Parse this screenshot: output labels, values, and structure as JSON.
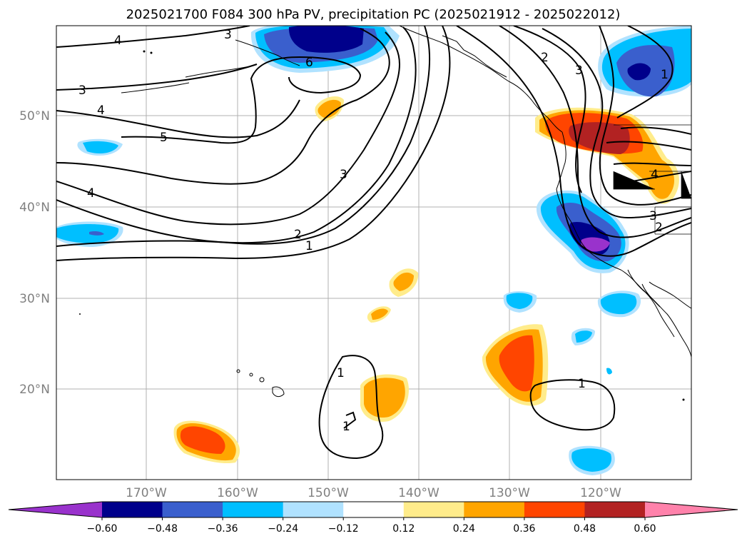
{
  "title": "2025021700 F084 300 hPa PV, precipitation PC (2025021912 - 2025022012)",
  "axes": {
    "lat_labels": [
      "50°N",
      "40°N",
      "30°N",
      "20°N"
    ],
    "lon_labels": [
      "170°W",
      "160°W",
      "150°W",
      "140°W",
      "130°W",
      "120°W"
    ]
  },
  "colorbar": {
    "levels": [
      "−0.60",
      "−0.48",
      "−0.36",
      "−0.24",
      "−0.12",
      "0.12",
      "0.24",
      "0.36",
      "0.48",
      "0.60"
    ],
    "colors": [
      "#9932cc",
      "#00008b",
      "#3a5fcd",
      "#00bfff",
      "#b0e2ff",
      "#ffffff",
      "#ffec8b",
      "#ffa500",
      "#ff4500",
      "#b22222",
      "#ff82ab"
    ]
  },
  "contour_labels": [
    {
      "text": "4"
    },
    {
      "text": "3"
    },
    {
      "text": "6"
    },
    {
      "text": "3"
    },
    {
      "text": "4"
    },
    {
      "text": "5"
    },
    {
      "text": "4"
    },
    {
      "text": "3"
    },
    {
      "text": "2"
    },
    {
      "text": "1"
    },
    {
      "text": "2"
    },
    {
      "text": "3"
    },
    {
      "text": "1"
    },
    {
      "text": "4"
    },
    {
      "text": "3"
    },
    {
      "text": "2"
    },
    {
      "text": "1"
    },
    {
      "text": "1"
    },
    {
      "text": "1"
    }
  ]
}
